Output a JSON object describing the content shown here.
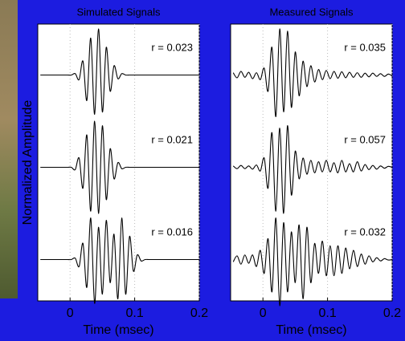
{
  "chart_data": [
    {
      "type": "line",
      "title": "Simulated Signals",
      "xlabel": "Time (msec)",
      "ylabel": "Normalized Amplitude",
      "xlim": [
        -0.05,
        0.2
      ],
      "xticks": [
        0,
        0.1,
        0.2
      ],
      "ylim": [
        -1,
        1
      ],
      "grid": true,
      "color": "#000000",
      "traces": [
        {
          "annotation": "r = 0.023",
          "x": [
            -0.046,
            -0.04,
            -0.034,
            -0.028,
            -0.022,
            -0.016,
            -0.01,
            -0.004,
            0.002,
            0.008,
            0.014,
            0.02,
            0.026,
            0.032,
            0.038,
            0.044,
            0.05,
            0.056,
            0.062,
            0.068,
            0.074,
            0.08,
            0.086,
            0.092,
            0.098,
            0.104,
            0.11,
            0.116,
            0.122,
            0.128,
            0.134,
            0.14,
            0.146,
            0.152,
            0.158,
            0.164,
            0.17,
            0.176,
            0.182,
            0.188,
            0.194,
            0.2
          ],
          "values": [
            0,
            0,
            0,
            0,
            0,
            0,
            0,
            0,
            0,
            0.03,
            -0.1,
            0.3,
            -0.55,
            0.8,
            -0.85,
            1.0,
            -0.8,
            0.6,
            -0.35,
            0.2,
            -0.08,
            0.03,
            0,
            0,
            0,
            0,
            0,
            0,
            0,
            0,
            0,
            0,
            0,
            0,
            0,
            0,
            0,
            0,
            0,
            0,
            0,
            0
          ]
        },
        {
          "annotation": "r = 0.021",
          "x": [
            -0.046,
            -0.04,
            -0.034,
            -0.028,
            -0.022,
            -0.016,
            -0.01,
            -0.004,
            0.002,
            0.008,
            0.014,
            0.02,
            0.026,
            0.032,
            0.038,
            0.044,
            0.05,
            0.056,
            0.062,
            0.068,
            0.074,
            0.08,
            0.086,
            0.092,
            0.098,
            0.104,
            0.11,
            0.116,
            0.122,
            0.128,
            0.134,
            0.14,
            0.146,
            0.152,
            0.158,
            0.164,
            0.17,
            0.176,
            0.182,
            0.188,
            0.194,
            0.2
          ],
          "values": [
            0,
            0,
            0,
            0,
            0,
            0,
            0,
            0,
            0,
            -0.05,
            0.2,
            -0.45,
            0.7,
            -0.95,
            1.0,
            -1.0,
            0.9,
            -0.7,
            0.4,
            -0.25,
            0.1,
            -0.03,
            0,
            0,
            0,
            0,
            0,
            0,
            0,
            0,
            0,
            0,
            0,
            0,
            0,
            0,
            0,
            0,
            0,
            0,
            0,
            0
          ]
        },
        {
          "annotation": "r = 0.016",
          "x": [
            -0.046,
            -0.04,
            -0.034,
            -0.028,
            -0.022,
            -0.016,
            -0.01,
            -0.004,
            0.002,
            0.008,
            0.014,
            0.02,
            0.026,
            0.032,
            0.038,
            0.044,
            0.05,
            0.056,
            0.062,
            0.068,
            0.074,
            0.08,
            0.086,
            0.092,
            0.098,
            0.104,
            0.11,
            0.116,
            0.122,
            0.128,
            0.134,
            0.14,
            0.146,
            0.152,
            0.158,
            0.164,
            0.17,
            0.176,
            0.182,
            0.188,
            0.194,
            0.2
          ],
          "values": [
            0,
            0,
            0,
            0,
            0,
            0,
            0,
            0,
            0,
            0.03,
            -0.15,
            0.35,
            -0.6,
            0.9,
            -0.95,
            0.7,
            -0.75,
            0.85,
            -0.5,
            0.55,
            -0.85,
            0.9,
            -0.75,
            0.5,
            -0.25,
            0.1,
            -0.03,
            0,
            0,
            0,
            0,
            0,
            0,
            0,
            0,
            0,
            0,
            0,
            0,
            0,
            0,
            0
          ]
        }
      ]
    },
    {
      "type": "line",
      "title": "Measured Signals",
      "xlabel": "Time (msec)",
      "xlim": [
        -0.05,
        0.2
      ],
      "xticks": [
        0,
        0.1,
        0.2
      ],
      "ylim": [
        -1,
        1
      ],
      "grid": true,
      "color": "#000000",
      "traces": [
        {
          "annotation": "r = 0.035",
          "x": [
            -0.046,
            -0.04,
            -0.034,
            -0.028,
            -0.022,
            -0.016,
            -0.01,
            -0.004,
            0.002,
            0.008,
            0.014,
            0.02,
            0.026,
            0.032,
            0.038,
            0.044,
            0.05,
            0.056,
            0.062,
            0.068,
            0.074,
            0.08,
            0.086,
            0.092,
            0.098,
            0.104,
            0.11,
            0.116,
            0.122,
            0.128,
            0.134,
            0.14,
            0.146,
            0.152,
            0.158,
            0.164,
            0.17,
            0.176,
            0.182,
            0.188,
            0.194,
            0.2
          ],
          "values": [
            0.05,
            -0.06,
            0.08,
            -0.05,
            0.06,
            -0.08,
            0.05,
            -0.1,
            0.15,
            -0.35,
            0.6,
            -0.9,
            1.0,
            -0.8,
            0.95,
            -0.7,
            0.5,
            -0.45,
            0.3,
            -0.25,
            0.2,
            -0.15,
            0.12,
            -0.1,
            0.1,
            -0.08,
            0.08,
            -0.07,
            0.07,
            -0.06,
            0.06,
            -0.05,
            0.05,
            -0.05,
            0.04,
            -0.04,
            0.04,
            -0.03,
            0.03,
            -0.03,
            0.02,
            -0.02
          ]
        },
        {
          "annotation": "r = 0.057",
          "x": [
            -0.046,
            -0.04,
            -0.034,
            -0.028,
            -0.022,
            -0.016,
            -0.01,
            -0.004,
            0.002,
            0.008,
            0.014,
            0.02,
            0.026,
            0.032,
            0.038,
            0.044,
            0.05,
            0.056,
            0.062,
            0.068,
            0.074,
            0.08,
            0.086,
            0.092,
            0.098,
            0.104,
            0.11,
            0.116,
            0.122,
            0.128,
            0.134,
            0.14,
            0.146,
            0.152,
            0.158,
            0.164,
            0.17,
            0.176,
            0.182,
            0.188,
            0.194,
            0.2
          ],
          "values": [
            0.03,
            -0.03,
            0.04,
            -0.03,
            0.03,
            -0.04,
            0.05,
            -0.08,
            0.2,
            -0.45,
            0.75,
            -0.95,
            0.85,
            -1.0,
            0.9,
            -0.6,
            0.35,
            -0.25,
            0.2,
            -0.15,
            0.15,
            -0.12,
            0.12,
            -0.1,
            0.15,
            -0.1,
            0.1,
            -0.12,
            0.15,
            -0.1,
            0.08,
            -0.1,
            0.12,
            -0.08,
            0.06,
            -0.05,
            0.04,
            -0.04,
            0.03,
            -0.02,
            0.02,
            0
          ]
        },
        {
          "annotation": "r = 0.032",
          "x": [
            -0.046,
            -0.04,
            -0.034,
            -0.028,
            -0.022,
            -0.016,
            -0.01,
            -0.004,
            0.002,
            0.008,
            0.014,
            0.02,
            0.026,
            0.032,
            0.038,
            0.044,
            0.05,
            0.056,
            0.062,
            0.068,
            0.074,
            0.08,
            0.086,
            0.092,
            0.098,
            0.104,
            0.11,
            0.116,
            0.122,
            0.128,
            0.134,
            0.14,
            0.146,
            0.152,
            0.158,
            0.164,
            0.17,
            0.176,
            0.182,
            0.188,
            0.194,
            0.2
          ],
          "values": [
            -0.05,
            0.08,
            -0.1,
            0.1,
            -0.08,
            0.1,
            -0.15,
            0.2,
            -0.3,
            0.45,
            -0.7,
            0.9,
            -1.0,
            0.8,
            -0.7,
            0.6,
            -0.5,
            0.75,
            -0.85,
            0.7,
            -0.5,
            0.35,
            -0.3,
            0.4,
            -0.35,
            0.3,
            -0.35,
            0.3,
            -0.3,
            0.25,
            -0.2,
            0.2,
            -0.15,
            0.12,
            -0.1,
            0.08,
            -0.05,
            0.04,
            -0.03,
            0.02,
            -0.01,
            0
          ]
        }
      ]
    }
  ]
}
